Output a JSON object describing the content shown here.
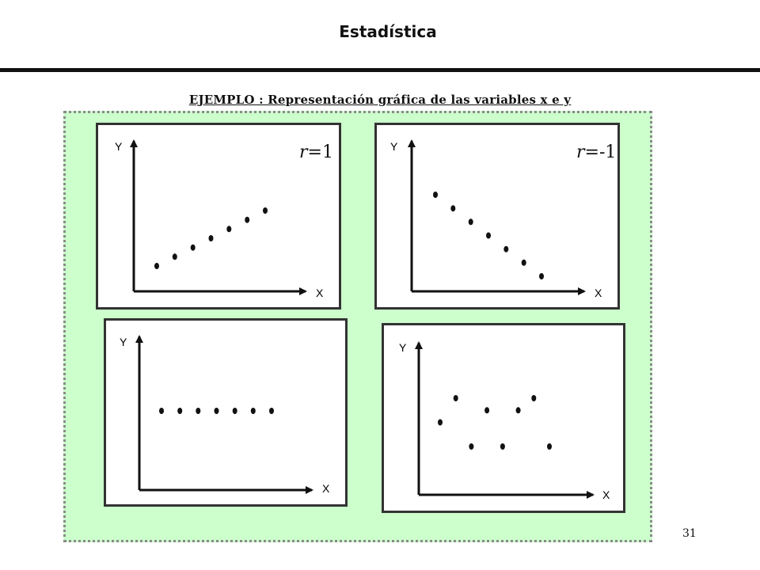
{
  "header": {
    "title": "Estadística"
  },
  "subtitle": "EJEMPLO : Representación gráfica de las variables x e y",
  "panels": [
    {
      "name": "positive",
      "x_label": "X",
      "y_label": "Y",
      "r_symbol": "r",
      "r_value": "=1",
      "points": [
        [
          1,
          1
        ],
        [
          2,
          2
        ],
        [
          3,
          3
        ],
        [
          4,
          4
        ],
        [
          5,
          5
        ],
        [
          6,
          6
        ],
        [
          7,
          7
        ]
      ]
    },
    {
      "name": "negative",
      "x_label": "X",
      "y_label": "Y",
      "r_symbol": "r",
      "r_value": "=-1",
      "points": [
        [
          1,
          7
        ],
        [
          2,
          6
        ],
        [
          3,
          5
        ],
        [
          4,
          4
        ],
        [
          5,
          3
        ],
        [
          6,
          2
        ],
        [
          7,
          1
        ]
      ]
    },
    {
      "name": "zero-flat",
      "x_label": "X",
      "y_label": "Y",
      "points": [
        [
          1,
          4
        ],
        [
          2,
          4
        ],
        [
          3,
          4
        ],
        [
          4,
          4
        ],
        [
          5,
          4
        ],
        [
          6,
          4
        ],
        [
          7,
          4
        ]
      ]
    },
    {
      "name": "random",
      "x_label": "X",
      "y_label": "Y",
      "points": [
        [
          1,
          4
        ],
        [
          2,
          6
        ],
        [
          3,
          2
        ],
        [
          4,
          5
        ],
        [
          5,
          2
        ],
        [
          6,
          5
        ],
        [
          7,
          6
        ],
        [
          8,
          2
        ]
      ]
    }
  ],
  "page_number": "31"
}
